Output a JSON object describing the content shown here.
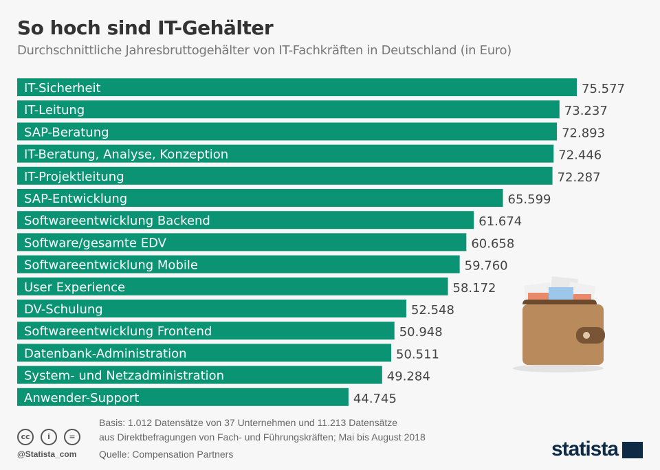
{
  "title": "So hoch sind IT-Gehälter",
  "subtitle": "Durchschnittliche Jahresbruttogehälter von IT-Fachkräften in Deutschland (in Euro)",
  "colors": {
    "bar": "#0b9474",
    "background": "#f7f7f7"
  },
  "chart_data": {
    "type": "bar",
    "orientation": "horizontal",
    "categories": [
      "IT-Sicherheit",
      "IT-Leitung",
      "SAP-Beratung",
      "IT-Beratung, Analyse, Konzeption",
      "IT-Projektleitung",
      "SAP-Entwicklung",
      "Softwareentwicklung Backend",
      "Software/gesamte EDV",
      "Softwareentwicklung Mobile",
      "User Experience",
      "DV-Schulung",
      "Softwareentwicklung Frontend",
      "Datenbank-Administration",
      "System- und Netzadministration",
      "Anwender-Support"
    ],
    "values": [
      75577,
      73237,
      72893,
      72446,
      72287,
      65599,
      61674,
      60658,
      59760,
      58172,
      52548,
      50948,
      50511,
      49284,
      44745
    ],
    "value_labels": [
      "75.577",
      "73.237",
      "72.893",
      "72.446",
      "72.287",
      "65.599",
      "61.674",
      "60.658",
      "59.760",
      "58.172",
      "52.548",
      "50.948",
      "50.511",
      "49.284",
      "44.745"
    ],
    "xlim": [
      0,
      75577
    ],
    "grid": false
  },
  "footer": {
    "note_line1": "Basis: 1.012 Datensätze von 37 Unternehmen und 11.213 Datensätze",
    "note_line2": "aus Direktbefragungen von Fach- und Führungskräften; Mai bis August 2018",
    "source": "Quelle: Compensation Partners",
    "handle": "@Statista_com",
    "cc_icons": [
      "cc-icon",
      "by-icon",
      "nd-icon"
    ],
    "cc_glyphs": [
      "cc",
      "i",
      "="
    ]
  },
  "logo": "statista"
}
